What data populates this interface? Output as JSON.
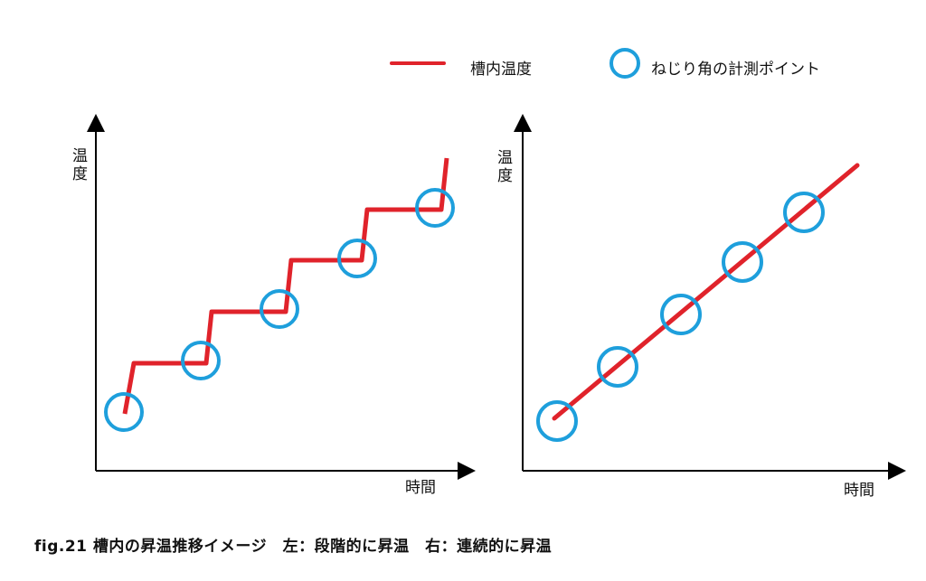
{
  "legend": {
    "line_label": "槽内温度",
    "circle_label": "ねじり角の計測ポイント"
  },
  "left_chart": {
    "y_label": "温度",
    "x_label": "時間",
    "curve": "stepwise",
    "measurement_points": 5
  },
  "right_chart": {
    "y_label": "温度",
    "x_label": "時間",
    "curve": "linear",
    "measurement_points": 5
  },
  "caption": "fig.21 槽内の昇温推移イメージ　左：段階的に昇温　右：連続的に昇温",
  "colors": {
    "temperature_line": "#e0232b",
    "measurement_circle": "#1e9fdc",
    "axis": "#000000"
  }
}
